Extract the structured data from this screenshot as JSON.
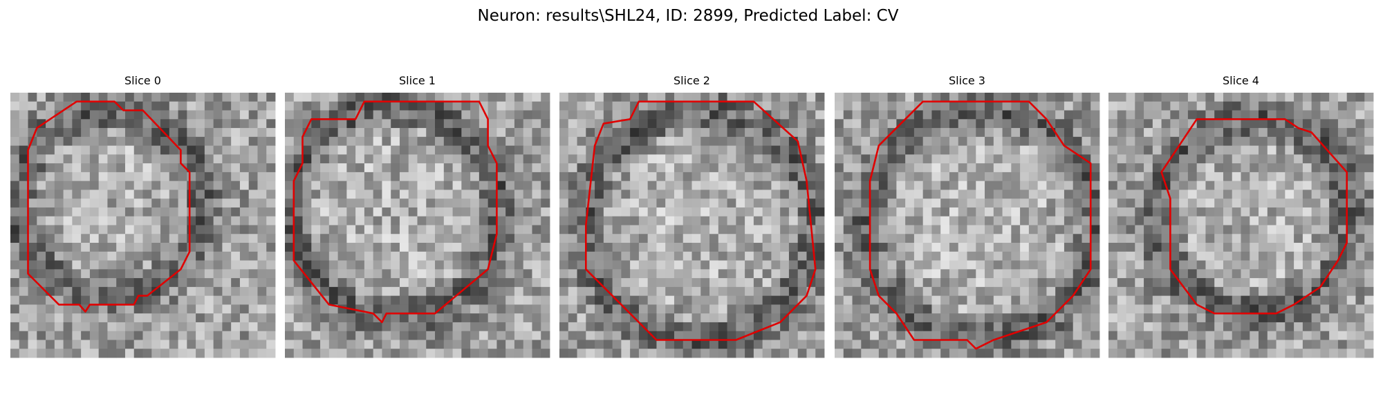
{
  "title": "Neuron: results\\SHL24, ID: 2899, Predicted Label: CV",
  "panels": [
    {
      "title": "Slice 0"
    },
    {
      "title": "Slice 1"
    },
    {
      "title": "Slice 2"
    },
    {
      "title": "Slice 3"
    },
    {
      "title": "Slice 4"
    }
  ]
}
